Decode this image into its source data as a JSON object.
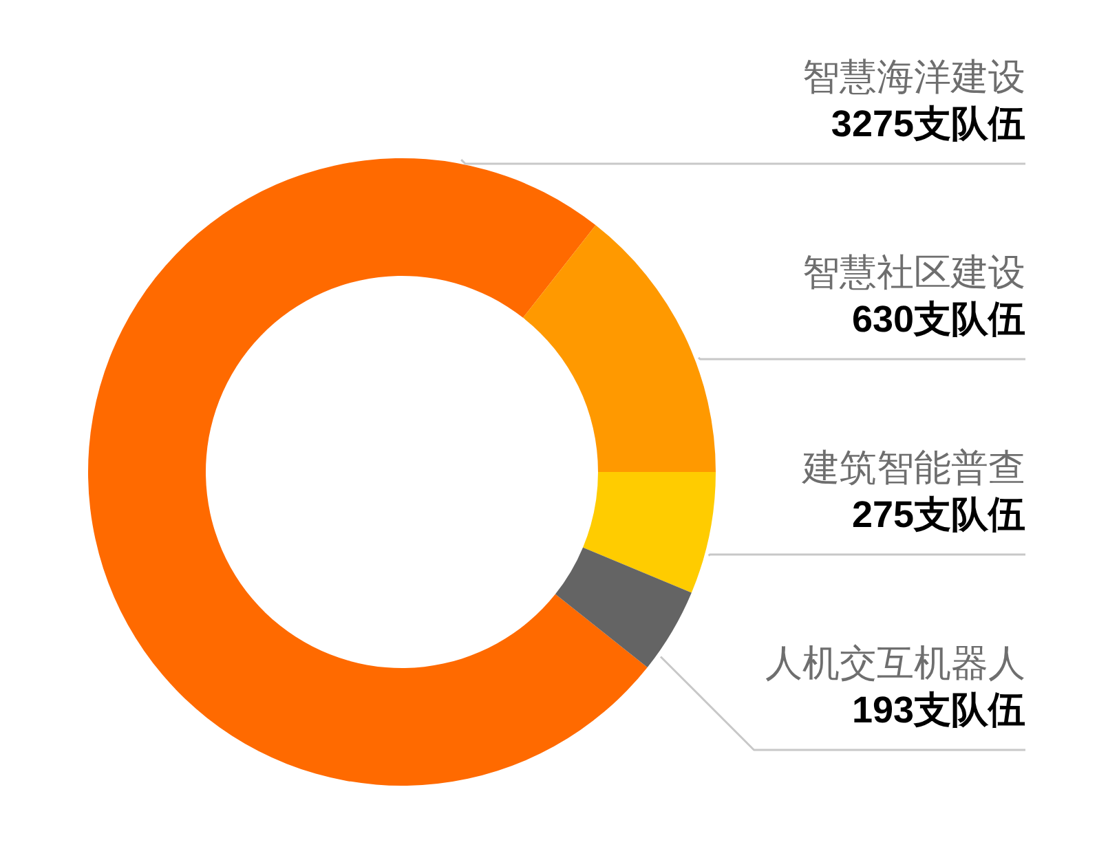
{
  "chart_data": {
    "type": "donut",
    "categories": [
      "智慧海洋建设",
      "智慧社区建设",
      "建筑智能普查",
      "人机交互机器人"
    ],
    "values": [
      3275,
      630,
      275,
      193
    ],
    "colors": [
      "#ff6a00",
      "#ff9900",
      "#ffcc00",
      "#646464"
    ],
    "value_labels": [
      "3275支队伍",
      "630支队伍",
      "275支队伍",
      "193支队伍"
    ]
  }
}
